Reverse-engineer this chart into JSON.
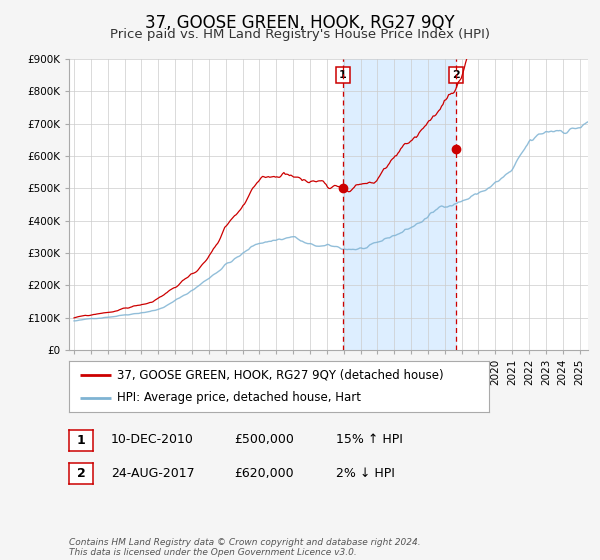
{
  "title": "37, GOOSE GREEN, HOOK, RG27 9QY",
  "subtitle": "Price paid vs. HM Land Registry's House Price Index (HPI)",
  "ylim": [
    0,
    900000
  ],
  "yticks": [
    0,
    100000,
    200000,
    300000,
    400000,
    500000,
    600000,
    700000,
    800000,
    900000
  ],
  "ytick_labels": [
    "£0",
    "£100K",
    "£200K",
    "£300K",
    "£400K",
    "£500K",
    "£600K",
    "£700K",
    "£800K",
    "£900K"
  ],
  "xlim_start": 1994.7,
  "xlim_end": 2025.5,
  "background_color": "#f5f5f5",
  "plot_bg_color": "#ffffff",
  "grid_color": "#cccccc",
  "red_line_color": "#cc0000",
  "blue_line_color": "#7fb3d3",
  "shade_color": "#ddeeff",
  "vline_color": "#cc0000",
  "event1_x": 2010.95,
  "event1_y": 500000,
  "event2_x": 2017.65,
  "event2_y": 620000,
  "legend_label_red": "37, GOOSE GREEN, HOOK, RG27 9QY (detached house)",
  "legend_label_blue": "HPI: Average price, detached house, Hart",
  "table_row1": [
    "1",
    "10-DEC-2010",
    "£500,000",
    "15% ↑ HPI"
  ],
  "table_row2": [
    "2",
    "24-AUG-2017",
    "£620,000",
    "2% ↓ HPI"
  ],
  "footer": "Contains HM Land Registry data © Crown copyright and database right 2024.\nThis data is licensed under the Open Government Licence v3.0.",
  "title_fontsize": 12,
  "subtitle_fontsize": 9.5,
  "tick_fontsize": 7.5,
  "legend_fontsize": 8.5,
  "table_fontsize": 9
}
